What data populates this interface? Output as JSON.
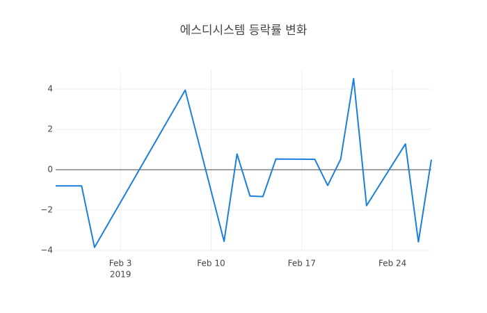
{
  "chart_data": {
    "type": "line",
    "title": "에스디시스템 등락률 변화",
    "x": [
      "2019-01-29",
      "2019-01-31",
      "2019-02-01",
      "2019-02-08",
      "2019-02-11",
      "2019-02-12",
      "2019-02-13",
      "2019-02-14",
      "2019-02-15",
      "2019-02-18",
      "2019-02-19",
      "2019-02-20",
      "2019-02-21",
      "2019-02-22",
      "2019-02-25",
      "2019-02-26",
      "2019-02-27"
    ],
    "series": [
      {
        "color": "#1a7fdb",
        "values": [
          -0.8,
          -0.8,
          -3.85,
          3.95,
          -3.55,
          0.78,
          -1.3,
          -1.33,
          0.53,
          0.52,
          -0.78,
          0.52,
          4.52,
          -1.78,
          1.28,
          -3.58,
          0.5
        ]
      }
    ],
    "xlim": [
      "2019-01-29",
      "2019-02-27"
    ],
    "xticks": [
      {
        "value": "2019-02-03",
        "label": "Feb 3"
      },
      {
        "value": "2019-02-10",
        "label": "Feb 10"
      },
      {
        "value": "2019-02-17",
        "label": "Feb 17"
      },
      {
        "value": "2019-02-24",
        "label": "Feb 24"
      }
    ],
    "x_year_label": "2019",
    "ylim": [
      -4.07,
      4.97
    ],
    "yticks": [
      {
        "value": -4,
        "label": "−4"
      },
      {
        "value": -2,
        "label": "−2"
      },
      0,
      2,
      4
    ],
    "grid": true
  }
}
